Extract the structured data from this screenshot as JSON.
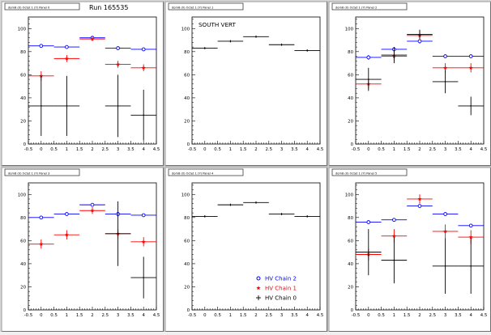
{
  "run_label": "Run 165535",
  "chart_data": [
    {
      "type": "scatter",
      "title": "dom8 (0) Octet 1 (Y) Panel 0",
      "annotation": "",
      "xlim": [
        -0.5,
        4.5
      ],
      "ylim": [
        0,
        110
      ],
      "xticks": [
        "-0.5",
        "0",
        "0.5",
        "1",
        "1.5",
        "2",
        "2.5",
        "3",
        "3.5",
        "4",
        "4.5"
      ],
      "yticks": [
        "0",
        "20",
        "40",
        "60",
        "80",
        "100"
      ],
      "series": [
        {
          "name": "HV Chain 2",
          "color": "#0000ff",
          "marker": "circle",
          "x": [
            0,
            1,
            2,
            3,
            4
          ],
          "y": [
            85,
            84,
            92,
            83,
            82
          ],
          "xerr": 0.5,
          "yerr": [
            1,
            1,
            1,
            1,
            1
          ]
        },
        {
          "name": "HV Chain 1",
          "color": "#ff0000",
          "marker": "star",
          "x": [
            0,
            1,
            2,
            3,
            4
          ],
          "y": [
            59,
            74,
            91,
            69,
            66
          ],
          "xerr": 0.5,
          "yerr": [
            4,
            3,
            2,
            3,
            3
          ]
        },
        {
          "name": "HV Chain 0",
          "color": "#000000",
          "marker": "cross",
          "x": [
            0,
            1,
            3,
            4
          ],
          "y": [
            33,
            33,
            33,
            25
          ],
          "xerr": 0.5,
          "yerr": [
            26,
            26,
            27,
            22
          ]
        }
      ]
    },
    {
      "type": "scatter",
      "title": "dom8 (0) Octet 1 (Y) Panel 1",
      "annotation": "SOUTH VERT",
      "xlim": [
        -0.5,
        4.5
      ],
      "ylim": [
        0,
        110
      ],
      "xticks": [
        "-0.5",
        "0",
        "0.5",
        "1",
        "1.5",
        "2",
        "2.5",
        "3",
        "3.5",
        "4",
        "4.5"
      ],
      "yticks": [
        "0",
        "20",
        "40",
        "60",
        "80",
        "100"
      ],
      "series": [
        {
          "name": "HV Chain 0",
          "color": "#000000",
          "marker": "cross",
          "x": [
            0,
            1,
            2,
            3,
            4
          ],
          "y": [
            83,
            89,
            93,
            86,
            81
          ],
          "xerr": 0.5,
          "yerr": [
            1,
            1,
            1,
            1,
            1
          ]
        }
      ]
    },
    {
      "type": "scatter",
      "title": "dom8 (0) Octet 1 (Y) Panel 2",
      "annotation": "",
      "xlim": [
        -0.5,
        4.5
      ],
      "ylim": [
        0,
        110
      ],
      "xticks": [
        "-0.5",
        "0",
        "0.5",
        "1",
        "1.5",
        "2",
        "2.5",
        "3",
        "3.5",
        "4",
        "4.5"
      ],
      "yticks": [
        "0",
        "20",
        "40",
        "60",
        "80",
        "100"
      ],
      "series": [
        {
          "name": "HV Chain 2",
          "color": "#0000ff",
          "marker": "circle",
          "x": [
            0,
            1,
            2,
            3,
            4
          ],
          "y": [
            75,
            82,
            89,
            76,
            76
          ],
          "xerr": 0.5,
          "yerr": [
            2,
            2,
            2,
            1,
            1
          ]
        },
        {
          "name": "HV Chain 1",
          "color": "#ff0000",
          "marker": "star",
          "x": [
            0,
            1,
            2,
            3,
            4
          ],
          "y": [
            52,
            76,
            94,
            66,
            66
          ],
          "xerr": 0.5,
          "yerr": [
            4,
            4,
            4,
            4,
            4
          ]
        },
        {
          "name": "HV Chain 0",
          "color": "#000000",
          "marker": "cross",
          "x": [
            0,
            1,
            2,
            3,
            4
          ],
          "y": [
            56,
            77,
            95,
            54,
            33
          ],
          "xerr": 0.5,
          "yerr": [
            10,
            7,
            4,
            10,
            8
          ]
        }
      ]
    },
    {
      "type": "scatter",
      "title": "dom8 (0) Octet 1 (Y) Panel 3",
      "annotation": "",
      "xlim": [
        -0.5,
        4.5
      ],
      "ylim": [
        0,
        110
      ],
      "xticks": [
        "-0.5",
        "0",
        "0.5",
        "1",
        "1.5",
        "2",
        "2.5",
        "3",
        "3.5",
        "4",
        "4.5"
      ],
      "yticks": [
        "0",
        "20",
        "40",
        "60",
        "80",
        "100"
      ],
      "series": [
        {
          "name": "HV Chain 2",
          "color": "#0000ff",
          "marker": "circle",
          "x": [
            0,
            1,
            2,
            3,
            4
          ],
          "y": [
            80,
            83,
            91,
            83,
            82
          ],
          "xerr": 0.5,
          "yerr": [
            1,
            1,
            1,
            1,
            1
          ]
        },
        {
          "name": "HV Chain 1",
          "color": "#ff0000",
          "marker": "star",
          "x": [
            0,
            1,
            2,
            3,
            4
          ],
          "y": [
            57,
            65,
            86,
            66,
            59
          ],
          "xerr": 0.5,
          "yerr": [
            4,
            4,
            3,
            4,
            4
          ]
        },
        {
          "name": "HV Chain 0",
          "color": "#000000",
          "marker": "cross",
          "x": [
            3,
            4
          ],
          "y": [
            66,
            28
          ],
          "xerr": 0.5,
          "yerr": [
            28,
            18
          ]
        }
      ]
    },
    {
      "type": "scatter",
      "title": "dom8 (0) Octet 1 (Y) Panel 4",
      "annotation": "",
      "xlim": [
        -0.5,
        4.5
      ],
      "ylim": [
        0,
        110
      ],
      "xticks": [
        "-0.5",
        "0",
        "0.5",
        "1",
        "1.5",
        "2",
        "2.5",
        "3",
        "3.5",
        "4",
        "4.5"
      ],
      "yticks": [
        "0",
        "20",
        "40",
        "60",
        "80",
        "100"
      ],
      "legend": true,
      "legend_position": "bottom-right",
      "series": [
        {
          "name": "HV Chain 2",
          "color": "#0000ff",
          "marker": "circle",
          "x": [],
          "y": []
        },
        {
          "name": "HV Chain 1",
          "color": "#ff0000",
          "marker": "star",
          "x": [],
          "y": []
        },
        {
          "name": "HV Chain 0",
          "color": "#000000",
          "marker": "cross",
          "x": [
            0,
            1,
            2,
            3,
            4
          ],
          "y": [
            81,
            91,
            93,
            83,
            81
          ],
          "xerr": 0.5,
          "yerr": [
            1,
            1,
            1,
            1,
            1
          ]
        }
      ]
    },
    {
      "type": "scatter",
      "title": "dom8 (0) Octet 1 (Y) Panel 5",
      "annotation": "",
      "xlim": [
        -0.5,
        4.5
      ],
      "ylim": [
        0,
        110
      ],
      "xticks": [
        "-0.5",
        "0",
        "0.5",
        "1",
        "1.5",
        "2",
        "2.5",
        "3",
        "3.5",
        "4",
        "4.5"
      ],
      "yticks": [
        "0",
        "20",
        "40",
        "60",
        "80",
        "100"
      ],
      "series": [
        {
          "name": "HV Chain 2",
          "color": "#0000ff",
          "marker": "circle",
          "x": [
            0,
            1,
            2,
            3,
            4
          ],
          "y": [
            76,
            78,
            90,
            83,
            73
          ],
          "xerr": 0.5,
          "yerr": [
            1,
            1,
            1,
            1,
            1
          ]
        },
        {
          "name": "HV Chain 1",
          "color": "#ff0000",
          "marker": "star",
          "x": [
            0,
            1,
            2,
            3,
            4
          ],
          "y": [
            48,
            64,
            96,
            68,
            63
          ],
          "xerr": 0.5,
          "yerr": [
            5,
            6,
            4,
            6,
            6
          ]
        },
        {
          "name": "HV Chain 0",
          "color": "#000000",
          "marker": "cross",
          "x": [
            0,
            1,
            3,
            4
          ],
          "y": [
            50,
            43,
            38,
            38
          ],
          "xerr": 0.5,
          "yerr": [
            20,
            20,
            24,
            24
          ]
        }
      ]
    }
  ]
}
